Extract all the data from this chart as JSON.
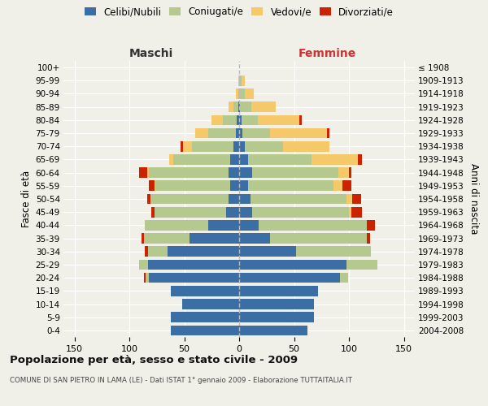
{
  "age_groups": [
    "0-4",
    "5-9",
    "10-14",
    "15-19",
    "20-24",
    "25-29",
    "30-34",
    "35-39",
    "40-44",
    "45-49",
    "50-54",
    "55-59",
    "60-64",
    "65-69",
    "70-74",
    "75-79",
    "80-84",
    "85-89",
    "90-94",
    "95-99",
    "100+"
  ],
  "birth_years": [
    "2004-2008",
    "1999-2003",
    "1994-1998",
    "1989-1993",
    "1984-1988",
    "1979-1983",
    "1974-1978",
    "1969-1973",
    "1964-1968",
    "1959-1963",
    "1954-1958",
    "1949-1953",
    "1944-1948",
    "1939-1943",
    "1934-1938",
    "1929-1933",
    "1924-1928",
    "1919-1923",
    "1914-1918",
    "1909-1913",
    "≤ 1908"
  ],
  "colors": {
    "celibe": "#3a6ea5",
    "coniugato": "#b5c98e",
    "vedovo": "#f5c96a",
    "divorziato": "#cc2200"
  },
  "maschi": {
    "celibe": [
      62,
      62,
      52,
      62,
      82,
      83,
      65,
      45,
      28,
      12,
      10,
      8,
      10,
      8,
      5,
      3,
      2,
      1,
      0,
      0,
      0
    ],
    "coniugato": [
      0,
      0,
      0,
      0,
      3,
      8,
      18,
      42,
      58,
      65,
      70,
      68,
      72,
      52,
      38,
      25,
      13,
      4,
      1,
      0,
      0
    ],
    "vedovo": [
      0,
      0,
      0,
      0,
      0,
      0,
      0,
      0,
      0,
      0,
      1,
      1,
      2,
      4,
      8,
      12,
      10,
      5,
      2,
      1,
      0
    ],
    "divorziato": [
      0,
      0,
      0,
      0,
      2,
      0,
      3,
      2,
      0,
      3,
      3,
      5,
      7,
      0,
      2,
      0,
      0,
      0,
      0,
      0,
      0
    ]
  },
  "femmine": {
    "celibe": [
      62,
      68,
      68,
      72,
      92,
      98,
      52,
      28,
      18,
      12,
      10,
      8,
      12,
      8,
      5,
      3,
      2,
      1,
      0,
      0,
      0
    ],
    "coniugato": [
      0,
      0,
      0,
      0,
      7,
      28,
      68,
      88,
      98,
      88,
      88,
      78,
      78,
      58,
      35,
      25,
      15,
      10,
      5,
      2,
      0
    ],
    "vedovo": [
      0,
      0,
      0,
      0,
      0,
      0,
      0,
      0,
      0,
      2,
      5,
      8,
      10,
      42,
      42,
      52,
      38,
      22,
      8,
      3,
      0
    ],
    "divorziato": [
      0,
      0,
      0,
      0,
      0,
      0,
      0,
      3,
      8,
      10,
      8,
      8,
      2,
      4,
      0,
      2,
      2,
      0,
      0,
      0,
      0
    ]
  },
  "xlim": 160,
  "title": "Popolazione per età, sesso e stato civile - 2009",
  "subtitle": "COMUNE DI SAN PIETRO IN LAMA (LE) - Dati ISTAT 1° gennaio 2009 - Elaborazione TUTTAITALIA.IT",
  "xlabel_left": "Maschi",
  "xlabel_right": "Femmine",
  "ylabel_left": "Fasce di età",
  "ylabel_right": "Anni di nascita",
  "legend_labels": [
    "Celibi/Nubili",
    "Coniugati/e",
    "Vedovi/e",
    "Divorziati/e"
  ],
  "bg_color": "#f0f0e8",
  "plot_bg": "#f0f0e8",
  "bar_height": 0.78
}
